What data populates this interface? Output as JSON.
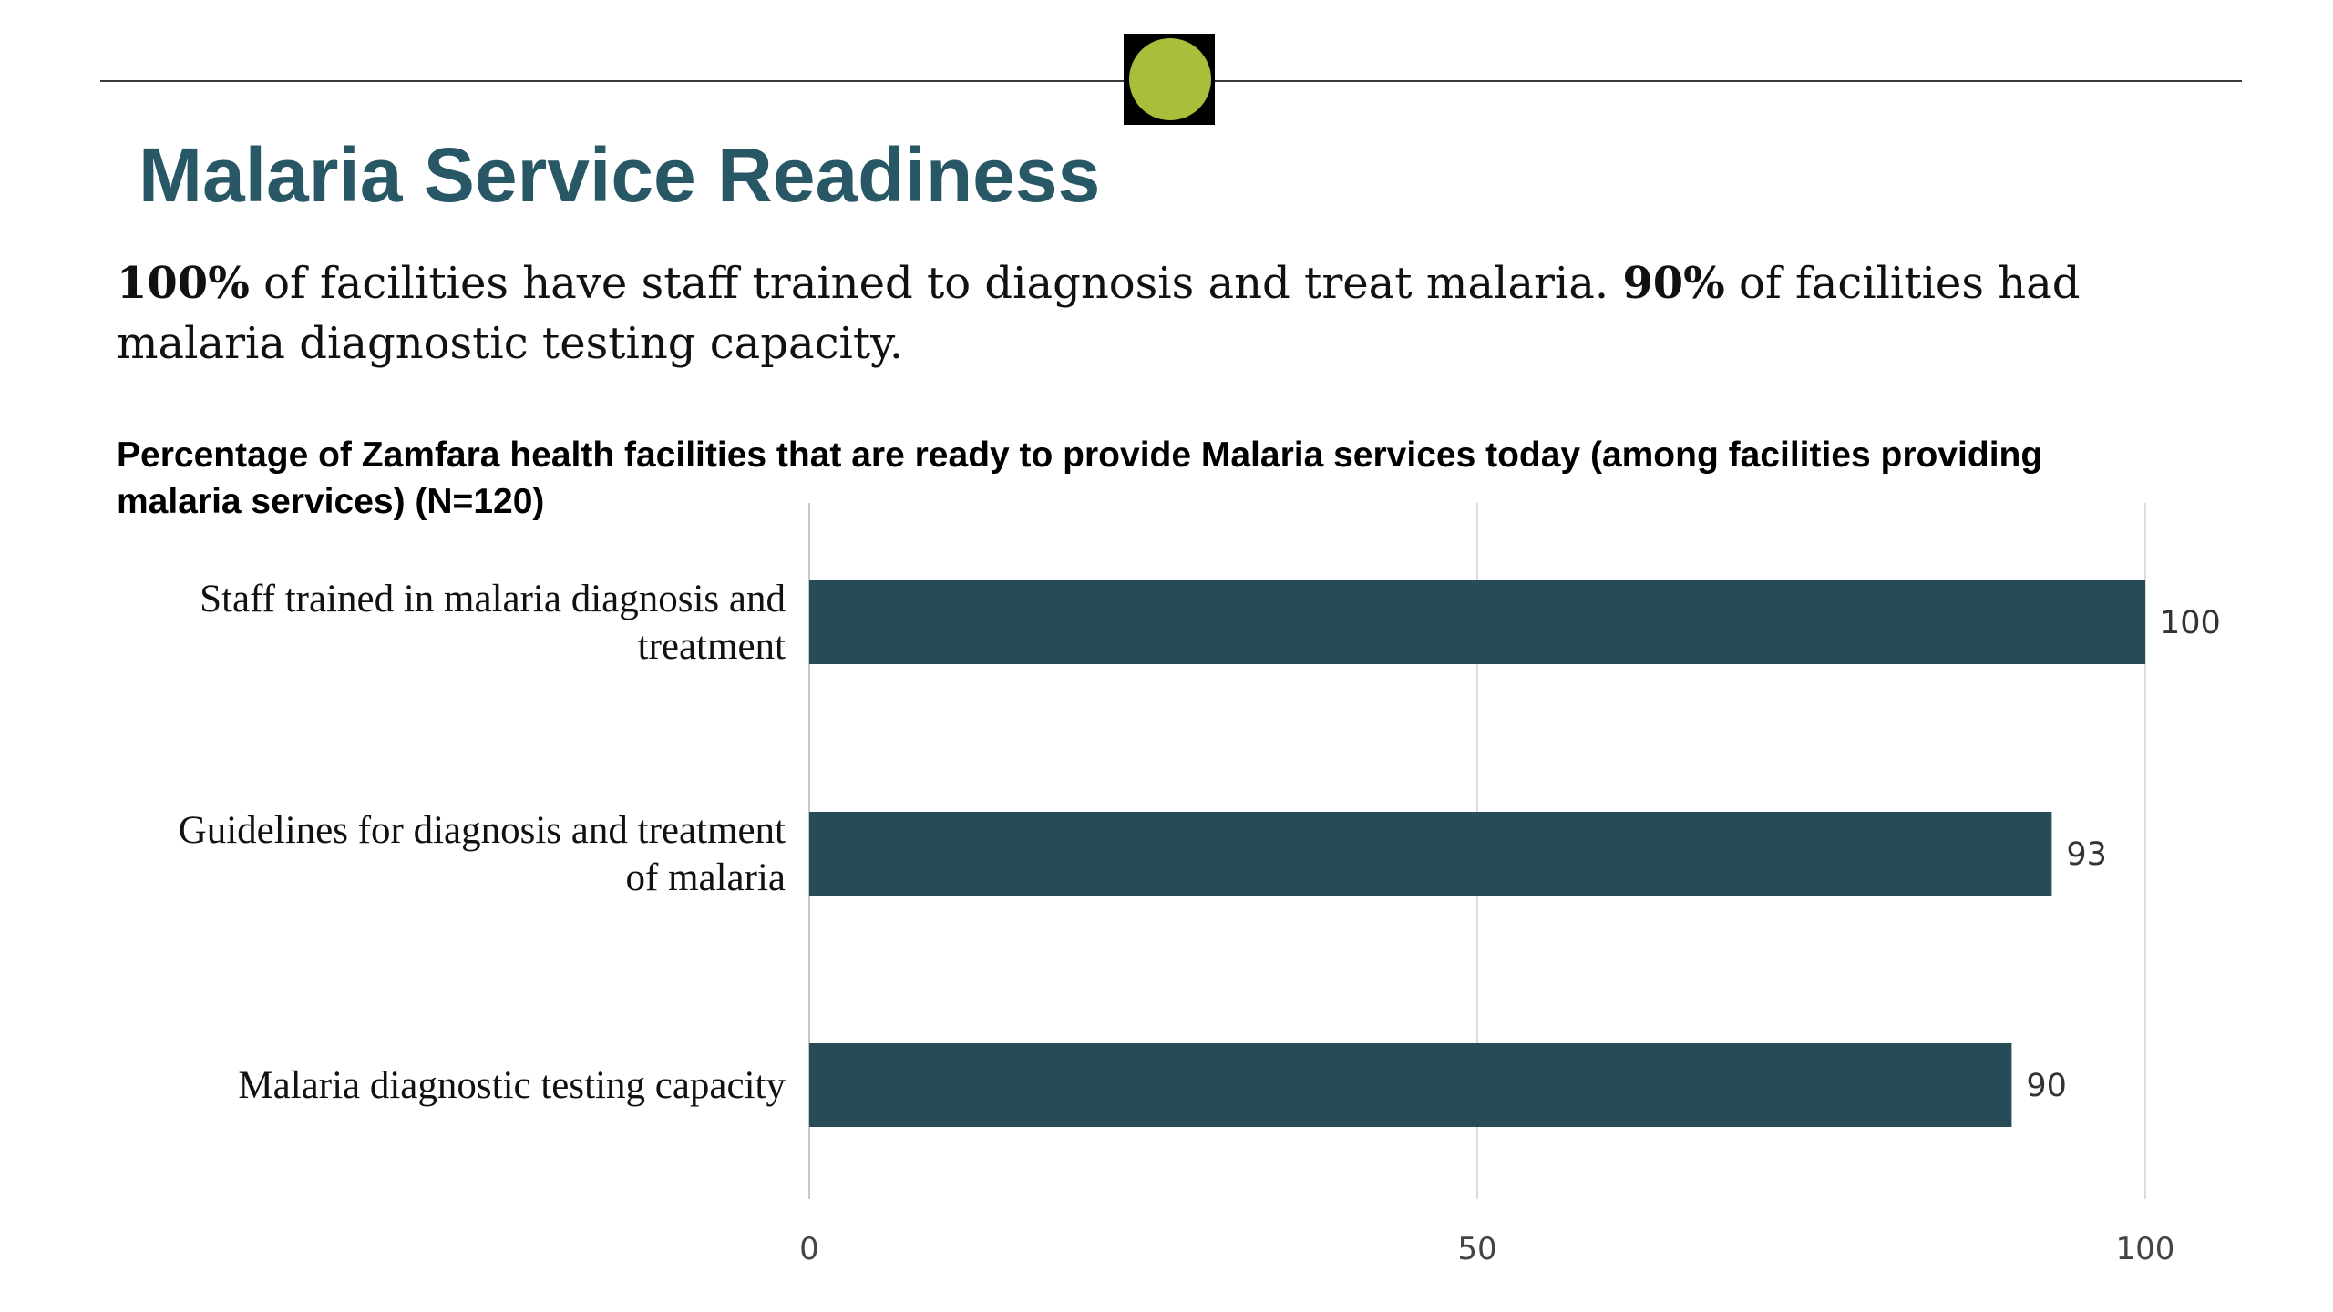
{
  "slide": {
    "title": "Malaria Service Readiness",
    "summary_parts": [
      {
        "text": "100%",
        "bold": true
      },
      {
        "text": " of facilities have staff trained to diagnosis and treat malaria. ",
        "bold": false
      },
      {
        "text": "90%",
        "bold": true
      },
      {
        "text": " of facilities had malaria diagnostic testing capacity.",
        "bold": false
      }
    ]
  },
  "colors": {
    "title": "#285766",
    "bar": "#264c58",
    "badge_dot": "#a9bf3c",
    "badge_bg": "#000000"
  },
  "chart_data": {
    "type": "bar",
    "orientation": "horizontal",
    "title": "Percentage of Zamfara health facilities that are ready to provide Malaria services today (among facilities providing malaria services) (N=120)",
    "categories": [
      [
        "Staff trained in malaria diagnosis and",
        "treatment"
      ],
      [
        "Guidelines for diagnosis and treatment",
        "of malaria"
      ],
      [
        "Malaria diagnostic testing capacity"
      ]
    ],
    "values": [
      100,
      93,
      90
    ],
    "data_labels": [
      "100",
      "93",
      "90"
    ],
    "xlim": [
      0,
      100
    ],
    "xticks": [
      0,
      50,
      100
    ],
    "xtick_labels": [
      "0",
      "50",
      "100"
    ],
    "grid": "vertical",
    "legend": "none",
    "xlabel": "",
    "ylabel": ""
  }
}
